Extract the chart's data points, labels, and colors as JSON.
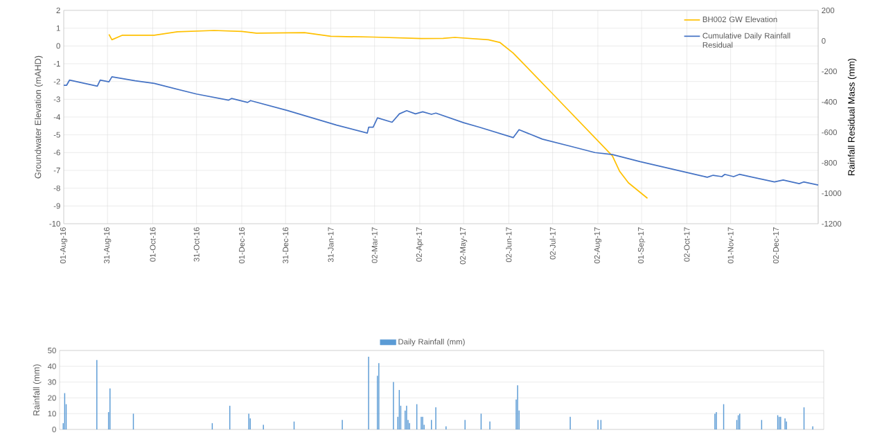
{
  "chart_data": [
    {
      "type": "line",
      "ylabel": "Groundwater Elevation (mAHD)",
      "y2label": "Rainfall Residual Mass (mm)",
      "xlim": [
        "2016-08-01",
        "2017-12-31"
      ],
      "xticks": [
        {
          "value": "2016-08-01",
          "label": "01-Aug-16"
        },
        {
          "value": "2016-08-31",
          "label": "31-Aug-16"
        },
        {
          "value": "2016-10-01",
          "label": "01-Oct-16"
        },
        {
          "value": "2016-10-31",
          "label": "31-Oct-16"
        },
        {
          "value": "2016-12-01",
          "label": "01-Dec-16"
        },
        {
          "value": "2016-12-31",
          "label": "31-Dec-16"
        },
        {
          "value": "2017-01-31",
          "label": "31-Jan-17"
        },
        {
          "value": "2017-03-02",
          "label": "02-Mar-17"
        },
        {
          "value": "2017-04-02",
          "label": "02-Apr-17"
        },
        {
          "value": "2017-05-02",
          "label": "02-May-17"
        },
        {
          "value": "2017-06-02",
          "label": "02-Jun-17"
        },
        {
          "value": "2017-07-02",
          "label": "02-Jul-17"
        },
        {
          "value": "2017-08-02",
          "label": "02-Aug-17"
        },
        {
          "value": "2017-09-01",
          "label": "01-Sep-17"
        },
        {
          "value": "2017-10-02",
          "label": "02-Oct-17"
        },
        {
          "value": "2017-11-01",
          "label": "01-Nov-17"
        },
        {
          "value": "2017-12-02",
          "label": "02-Dec-17"
        }
      ],
      "ylim": [
        -10,
        2
      ],
      "yticks": [
        -10,
        -9,
        -8,
        -7,
        -6,
        -5,
        -4,
        -3,
        -2,
        -1,
        0,
        1,
        2
      ],
      "y2lim": [
        -1200,
        200
      ],
      "y2ticks": [
        -1200,
        -1000,
        -800,
        -600,
        -400,
        -200,
        0,
        200
      ],
      "grid": true,
      "legend": "top right",
      "series": [
        {
          "name": "BH002 GW Elevation",
          "color": "#ffc000",
          "x": [
            "2016-09-01",
            "2016-09-03",
            "2016-09-10",
            "2016-10-02",
            "2016-10-18",
            "2016-11-12",
            "2016-12-01",
            "2016-12-11",
            "2017-01-13",
            "2017-01-31",
            "2017-03-01",
            "2017-04-03",
            "2017-04-18",
            "2017-04-26",
            "2017-05-19",
            "2017-05-27",
            "2017-06-05",
            "2017-07-04",
            "2017-08-12",
            "2017-08-17",
            "2017-08-23",
            "2017-09-05"
          ],
          "values": [
            0.65,
            0.35,
            0.6,
            0.6,
            0.8,
            0.87,
            0.82,
            0.72,
            0.75,
            0.54,
            0.5,
            0.42,
            0.43,
            0.48,
            0.35,
            0.19,
            -0.4,
            -2.86,
            -6.19,
            -7.06,
            -7.7,
            -8.57
          ]
        },
        {
          "name": "Cumulative Daily Rainfall Residual",
          "color": "#4472c4",
          "axis": "y2",
          "x": [
            "2016-08-01",
            "2016-08-03",
            "2016-08-05",
            "2016-08-24",
            "2016-08-26",
            "2016-09-01",
            "2016-09-03",
            "2016-09-19",
            "2016-10-02",
            "2016-10-31",
            "2016-11-22",
            "2016-11-24",
            "2016-12-05",
            "2016-12-07",
            "2017-01-01",
            "2017-02-04",
            "2017-02-25",
            "2017-02-26",
            "2017-03-01",
            "2017-03-04",
            "2017-03-14",
            "2017-03-19",
            "2017-03-24",
            "2017-03-30",
            "2017-04-04",
            "2017-04-10",
            "2017-04-13",
            "2017-05-02",
            "2017-05-13",
            "2017-06-05",
            "2017-06-09",
            "2017-06-25",
            "2017-07-14",
            "2017-07-31",
            "2017-08-12",
            "2017-08-31",
            "2017-10-16",
            "2017-10-20",
            "2017-10-26",
            "2017-10-28",
            "2017-11-03",
            "2017-11-07",
            "2017-12-01",
            "2017-12-07",
            "2017-12-18",
            "2017-12-21",
            "2017-12-31"
          ],
          "values": [
            -291,
            -291,
            -257,
            -297,
            -257,
            -269,
            -236,
            -262,
            -279,
            -349,
            -389,
            -378,
            -404,
            -392,
            -456,
            -553,
            -605,
            -566,
            -566,
            -505,
            -534,
            -479,
            -458,
            -479,
            -465,
            -482,
            -474,
            -537,
            -567,
            -635,
            -583,
            -645,
            -691,
            -733,
            -746,
            -793,
            -895,
            -882,
            -891,
            -876,
            -891,
            -876,
            -926,
            -913,
            -937,
            -926,
            -946
          ]
        }
      ]
    },
    {
      "type": "bar",
      "ylabel": "Rainfall (mm)",
      "tick_labels": "y",
      "categories": [
        null,
        null,
        null,
        null,
        null,
        null,
        null,
        null,
        null,
        null,
        null,
        null,
        null,
        null,
        null,
        null,
        null,
        null,
        null,
        null,
        null,
        null,
        null,
        null,
        null,
        null,
        null,
        null,
        null,
        null,
        null,
        null,
        null,
        null,
        null,
        null,
        null,
        null,
        null,
        null,
        null,
        null,
        null,
        null,
        null,
        null,
        null,
        null,
        null,
        null,
        null,
        null,
        null,
        null,
        null,
        null,
        null,
        null,
        null,
        null,
        null,
        null,
        null,
        null,
        null,
        null,
        null,
        null,
        null,
        null,
        null,
        null,
        null,
        null,
        null,
        null,
        null,
        null,
        null,
        null,
        null,
        null,
        null,
        null,
        null,
        null,
        null,
        null,
        null,
        null,
        null,
        null,
        null,
        null,
        null,
        null,
        null,
        null,
        null,
        null,
        null,
        null,
        null,
        null,
        null,
        null,
        null,
        null,
        null,
        null,
        null,
        null,
        null,
        null,
        null,
        null,
        null,
        null,
        null,
        null,
        null,
        null,
        null,
        null,
        null,
        null,
        null,
        null,
        null,
        null,
        null,
        null,
        null,
        null,
        null,
        null,
        null,
        null,
        null,
        null,
        null,
        null,
        null,
        null,
        null,
        null,
        null,
        null,
        null,
        null,
        null,
        null,
        null,
        null,
        null,
        null,
        null,
        null,
        null,
        null,
        null,
        null,
        null,
        null,
        null,
        null,
        null,
        null,
        null,
        null,
        null,
        null,
        null,
        null,
        null,
        null,
        null,
        null,
        null,
        null,
        null,
        null,
        null,
        null,
        null,
        null,
        null,
        null,
        null,
        null,
        null,
        null,
        null,
        null,
        null,
        null,
        null,
        null,
        null,
        null,
        null,
        null,
        null,
        null,
        null,
        null,
        null,
        null,
        null,
        null,
        null,
        null,
        null,
        null,
        null,
        null,
        null,
        null,
        null,
        null,
        null,
        null,
        null,
        null,
        null,
        null,
        null,
        null,
        null,
        null,
        null,
        null,
        null,
        null,
        null,
        null,
        null,
        null,
        null,
        null,
        null,
        null,
        null,
        null,
        null,
        null,
        null,
        null,
        null,
        null,
        null,
        null,
        null,
        null,
        null,
        null,
        null,
        null,
        null,
        null,
        null,
        null,
        null,
        null,
        null,
        null,
        null,
        null,
        null,
        null,
        null,
        null,
        null,
        null,
        null,
        null,
        null,
        null,
        null,
        null,
        null,
        null,
        null,
        null,
        null,
        null,
        null,
        null,
        null,
        null,
        null,
        null,
        null,
        null,
        null,
        null,
        null,
        null,
        null,
        null,
        null,
        null,
        null,
        null,
        null,
        null,
        null,
        null,
        null,
        null,
        null,
        null,
        null,
        null,
        null,
        null,
        null,
        null,
        null,
        null,
        null,
        null,
        null,
        null,
        null,
        null,
        null,
        null,
        null,
        null,
        null,
        null,
        null,
        null,
        null,
        null,
        null,
        null,
        null,
        null,
        null,
        null,
        null,
        null,
        null,
        null,
        null,
        null,
        null,
        null,
        null,
        null,
        null,
        null,
        null,
        null,
        null,
        null,
        null,
        null,
        null,
        null,
        null,
        null,
        null,
        null,
        null,
        null,
        null,
        null,
        null,
        null,
        null,
        null,
        null,
        null,
        null,
        null,
        null,
        null,
        null,
        null,
        null,
        null,
        null,
        null,
        null,
        null,
        null,
        null,
        null,
        null,
        null,
        null,
        null,
        null,
        null,
        null,
        null,
        null,
        null,
        null,
        null,
        null,
        null,
        null,
        null,
        null,
        null,
        null,
        null,
        null,
        null,
        null,
        null,
        null,
        null,
        null,
        null,
        null,
        null,
        null,
        null,
        null,
        null,
        null,
        null,
        null,
        null,
        null,
        null,
        null,
        null,
        null,
        null,
        null,
        null,
        null,
        null,
        null,
        null,
        null,
        null,
        null,
        null,
        null,
        null,
        null,
        null,
        null,
        null,
        null,
        null,
        null,
        null,
        null,
        null,
        null,
        null,
        null,
        null,
        null,
        null,
        null,
        null,
        null,
        null,
        null,
        null,
        null,
        null,
        null,
        null,
        null,
        null,
        null,
        null,
        null,
        null,
        null,
        null,
        null,
        null,
        null,
        null,
        null,
        null,
        null,
        null,
        null,
        null,
        null,
        null,
        null,
        null,
        null,
        null,
        null,
        null,
        null,
        null,
        null,
        null,
        null,
        null,
        null,
        null,
        null,
        null,
        null,
        null,
        null,
        null,
        null,
        null,
        null,
        null,
        null,
        null,
        null,
        null,
        null,
        null
      ],
      "ylim": [
        0,
        50
      ],
      "yticks": [
        0,
        10,
        20,
        30,
        40,
        50
      ],
      "grid": "y",
      "legend": "top",
      "series": [
        {
          "name": "Daily Rainfall (mm)",
          "color": "#5b9bd5",
          "values": [
            0,
            0,
            4,
            23,
            16,
            0,
            0,
            0,
            0,
            0,
            0,
            0,
            0,
            0,
            0,
            0,
            0,
            0,
            0,
            0,
            0,
            0,
            0,
            0,
            0,
            44,
            0,
            0,
            0,
            0,
            0,
            0,
            0,
            11,
            26,
            0,
            0,
            0,
            0,
            0,
            0,
            0,
            0,
            0,
            0,
            0,
            0,
            0,
            0,
            0,
            10,
            0,
            0,
            0,
            0,
            0,
            0,
            0,
            0,
            0,
            0,
            0,
            0,
            0,
            0,
            0,
            0,
            0,
            0,
            0,
            0,
            0,
            0,
            0,
            0,
            0,
            0,
            0,
            0,
            0,
            0,
            0,
            0,
            0,
            0,
            0,
            0,
            0,
            0,
            0,
            0,
            0,
            0,
            0,
            0,
            0,
            0,
            0,
            0,
            0,
            0,
            0,
            0,
            0,
            4,
            0,
            0,
            0,
            0,
            0,
            0,
            0,
            0,
            0,
            0,
            0,
            15,
            0,
            0,
            0,
            0,
            0,
            0,
            0,
            0,
            0,
            0,
            0,
            0,
            10,
            7,
            0,
            0,
            0,
            0,
            0,
            0,
            0,
            0,
            3,
            0,
            0,
            0,
            0,
            0,
            0,
            0,
            0,
            0,
            0,
            0,
            0,
            0,
            0,
            0,
            0,
            0,
            0,
            0,
            0,
            5,
            0,
            0,
            0,
            0,
            0,
            0,
            0,
            0,
            0,
            0,
            0,
            0,
            0,
            0,
            0,
            0,
            0,
            0,
            0,
            0,
            0,
            0,
            0,
            0,
            0,
            0,
            0,
            0,
            0,
            0,
            0,
            0,
            6,
            0,
            0,
            0,
            0,
            0,
            0,
            0,
            0,
            0,
            0,
            0,
            0,
            0,
            0,
            0,
            0,
            0,
            46,
            0,
            0,
            0,
            0,
            0,
            34,
            42,
            0,
            0,
            0,
            0,
            0,
            0,
            0,
            0,
            0,
            30,
            0,
            0,
            8,
            25,
            15,
            0,
            0,
            12,
            15,
            6,
            4,
            0,
            0,
            0,
            0,
            16,
            0,
            0,
            8,
            8,
            3,
            0,
            0,
            0,
            0,
            6,
            0,
            0,
            14,
            0,
            0,
            0,
            0,
            0,
            0,
            2,
            0,
            0,
            0,
            0,
            0,
            0,
            0,
            0,
            0,
            0,
            0,
            0,
            6,
            0,
            0,
            0,
            0,
            0,
            0,
            0,
            0,
            0,
            0,
            10,
            0,
            0,
            0,
            0,
            0,
            5,
            0,
            0,
            0,
            0,
            0,
            0,
            0,
            0,
            0,
            0,
            0,
            0,
            0,
            0,
            0,
            0,
            0,
            19,
            28,
            12,
            0,
            0,
            0,
            0,
            0,
            0,
            0,
            0,
            0,
            0,
            0,
            0,
            0,
            0,
            0,
            0,
            0,
            0,
            0,
            0,
            0,
            0,
            0,
            0,
            0,
            0,
            0,
            0,
            0,
            0,
            0,
            0,
            0,
            0,
            8,
            0,
            0,
            0,
            0,
            0,
            0,
            0,
            0,
            0,
            0,
            0,
            0,
            0,
            0,
            0,
            0,
            0,
            0,
            6,
            0,
            6,
            0,
            0,
            0,
            0,
            0,
            0,
            0,
            0,
            0,
            0,
            0,
            0,
            0,
            0,
            0,
            0,
            0,
            0,
            0,
            0,
            0,
            0,
            0,
            0,
            0,
            0,
            0,
            0,
            0,
            0,
            0,
            0,
            0,
            0,
            0,
            0,
            0,
            0,
            0,
            0,
            0,
            0,
            0,
            0,
            0,
            0,
            0,
            0,
            0,
            0,
            0,
            0,
            0,
            0,
            0,
            0,
            0,
            0,
            0,
            0,
            0,
            0,
            0,
            0,
            0,
            0,
            0,
            0,
            0,
            0,
            0,
            0,
            0,
            0,
            0,
            0,
            0,
            10,
            11,
            0,
            0,
            0,
            0,
            16,
            0,
            0,
            0,
            0,
            0,
            0,
            0,
            0,
            6,
            9,
            10,
            0,
            0,
            0,
            0,
            0,
            0,
            0,
            0,
            0,
            0,
            0,
            0,
            0,
            0,
            6,
            0,
            0,
            0,
            0,
            0,
            0,
            0,
            0,
            0,
            0,
            9,
            8,
            8,
            0,
            0,
            7,
            5,
            0,
            0,
            0,
            0,
            0,
            0,
            0,
            0,
            0,
            0,
            0,
            14,
            0,
            0,
            0,
            0,
            0,
            2,
            0,
            0,
            0,
            0,
            0,
            0,
            0
          ]
        }
      ]
    }
  ]
}
